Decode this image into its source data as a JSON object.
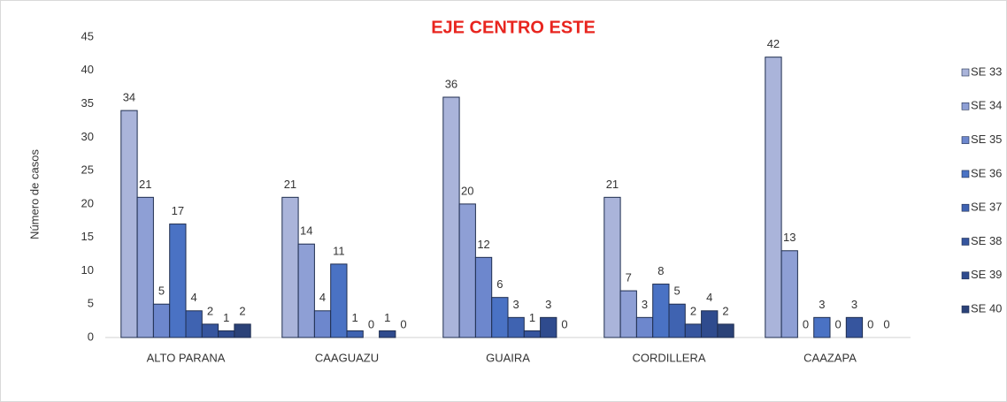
{
  "chart_data": {
    "type": "bar",
    "title": "EJE CENTRO ESTE",
    "y_label": "Número de casos",
    "categories": [
      "ALTO PARANA",
      "CAAGUAZU",
      "GUAIRA",
      "CORDILLERA",
      "CAAZAPA"
    ],
    "series": [
      {
        "name": "SE 33",
        "color": "#aab4da",
        "values": [
          34,
          21,
          36,
          21,
          42
        ]
      },
      {
        "name": "SE 34",
        "color": "#8e9fd5",
        "values": [
          21,
          14,
          20,
          7,
          13
        ]
      },
      {
        "name": "SE 35",
        "color": "#6d87cd",
        "values": [
          5,
          4,
          12,
          3,
          0
        ]
      },
      {
        "name": "SE 36",
        "color": "#4a72c4",
        "values": [
          17,
          11,
          6,
          8,
          3
        ]
      },
      {
        "name": "SE 37",
        "color": "#3f63b1",
        "values": [
          4,
          1,
          3,
          5,
          0
        ]
      },
      {
        "name": "SE 38",
        "color": "#36559e",
        "values": [
          2,
          0,
          1,
          2,
          3
        ]
      },
      {
        "name": "SE 39",
        "color": "#2f4b8e",
        "values": [
          1,
          1,
          3,
          4,
          0
        ]
      },
      {
        "name": "SE 40",
        "color": "#2b4278",
        "values": [
          2,
          0,
          0,
          2,
          0
        ]
      }
    ],
    "ylim": [
      0,
      45
    ],
    "yticks": [
      0,
      5,
      10,
      15,
      20,
      25,
      30,
      35,
      40,
      45
    ],
    "legend": "right"
  }
}
